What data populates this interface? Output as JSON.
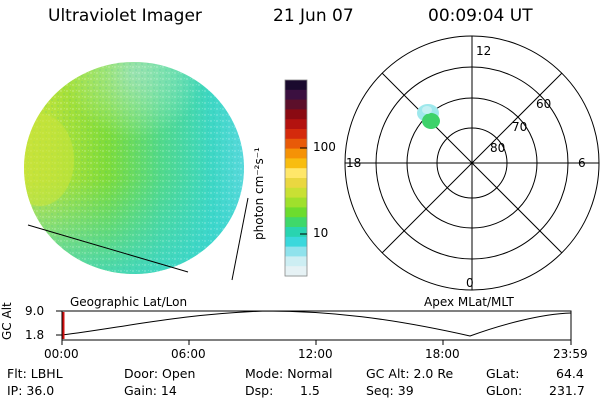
{
  "header": {
    "instrument": "Ultraviolet Imager",
    "date": "21 Jun 07",
    "time": "00:09:04 UT"
  },
  "globe_panel": {
    "label": "Geographic Lat/Lon"
  },
  "colorbar": {
    "unit_label": "photon cm⁻²s⁻¹",
    "tick_labels": [
      "100",
      "10"
    ],
    "colors": [
      "#1a0a2e",
      "#3b1040",
      "#5c0f2a",
      "#8a0a12",
      "#b3120f",
      "#d42a0c",
      "#e85a08",
      "#f59206",
      "#f8bd10",
      "#ffe76a",
      "#ead740",
      "#c9e034",
      "#9fe02c",
      "#6cdc2e",
      "#3fd86a",
      "#29d4b0",
      "#3ad8dc",
      "#8fe2ec",
      "#cdeef3",
      "#e6f2f5"
    ]
  },
  "polar_panel": {
    "label": "Apex MLat/MLT",
    "mlt_labels": {
      "top": "12",
      "left": "18",
      "right": "6",
      "bottom": "0"
    },
    "lat_labels": [
      "60",
      "70",
      "80"
    ]
  },
  "altitude_strip": {
    "axis_label": "GC Alt",
    "ticks": [
      "9.0",
      "1.8"
    ],
    "time_ticks": [
      "00:00",
      "06:00",
      "12:00",
      "18:00",
      "23:59"
    ]
  },
  "info": {
    "flt": "Flt: LBHL",
    "ip": "IP: 36.0",
    "door": "Door: Open",
    "gain": "Gain: 14",
    "mode": "Mode: Normal",
    "dsp_label": "Dsp:",
    "dsp_value": "1.5",
    "gc_alt": "GC Alt: 2.0 Re",
    "seq": "Seq: 39",
    "glat": "GLat:",
    "glat_value": "64.4",
    "glon": "GLon:",
    "glon_value": "231.7"
  }
}
